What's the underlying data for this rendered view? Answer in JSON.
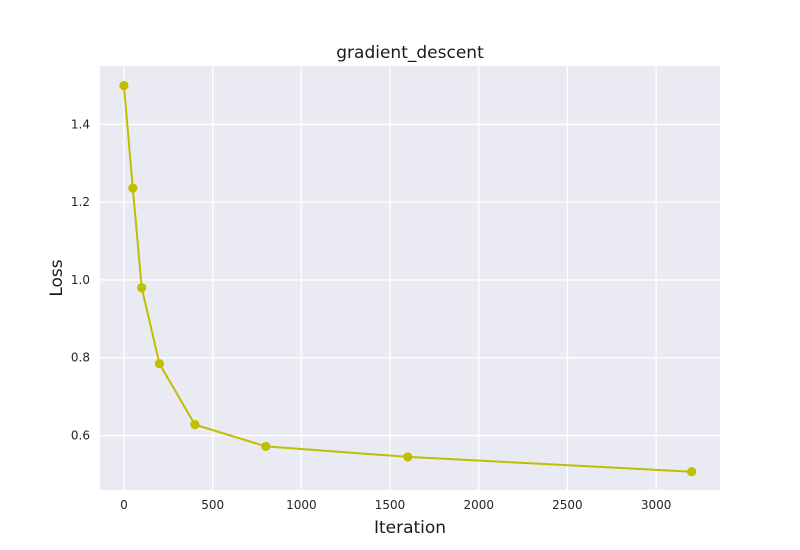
{
  "chart_data": {
    "type": "line",
    "title": "gradient_descent",
    "xlabel": "Iteration",
    "ylabel": "Loss",
    "xlim": [
      -135,
      3360
    ],
    "ylim": [
      0.46,
      1.55
    ],
    "xticks": [
      0,
      500,
      1000,
      1500,
      2000,
      2500,
      3000
    ],
    "yticks": [
      0.6,
      0.8,
      1.0,
      1.2,
      1.4
    ],
    "xtick_labels": [
      "0",
      "500",
      "1000",
      "1500",
      "2000",
      "2500",
      "3000"
    ],
    "ytick_labels": [
      "0.6",
      "0.8",
      "1.0",
      "1.2",
      "1.4"
    ],
    "grid": true,
    "series": [
      {
        "name": "loss",
        "color": "#bfbf00",
        "marker": "circle",
        "x": [
          0,
          50,
          100,
          200,
          400,
          800,
          1600,
          3200
        ],
        "y": [
          1.5,
          1.236,
          0.98,
          0.785,
          0.628,
          0.572,
          0.545,
          0.507
        ]
      }
    ]
  },
  "colors": {
    "plot_background": "#eaeaf2",
    "grid": "#ffffff",
    "page_background": "#ffffff"
  }
}
